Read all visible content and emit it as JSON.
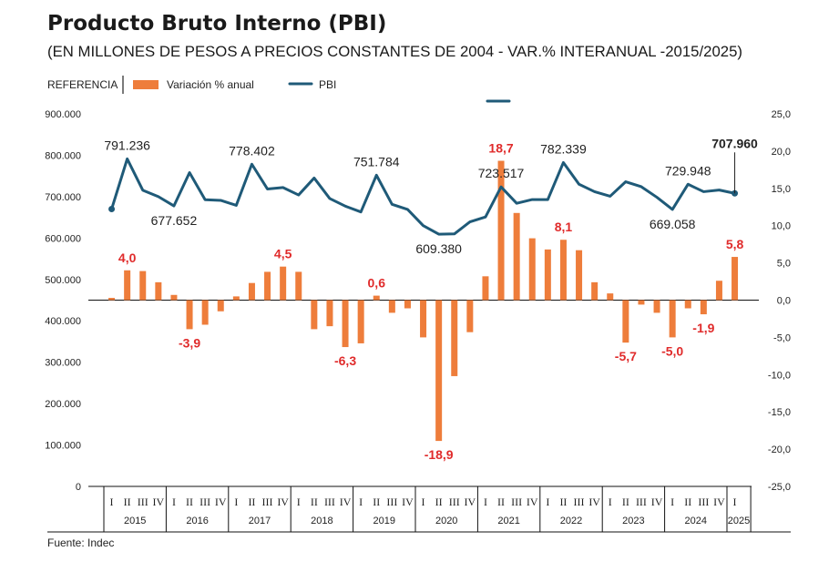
{
  "chart_data": {
    "type": "bar+line",
    "title": "Producto Bruto Interno (PBI)",
    "subtitle": "(EN MILLONES DE PESOS A PRECIOS CONSTANTES DE 2004 - VAR.% INTERANUAL -2015/2025)",
    "legend": {
      "heading": "REFERENCIA",
      "bar_label": "Variación % anual",
      "line_label": "PBI",
      "placement": "top-left"
    },
    "source": "Fuente: Indec",
    "colors": {
      "bar": "#ee7d3b",
      "line": "#1f5a78",
      "bar_label": "#e02b2b",
      "text": "#222222"
    },
    "years": [
      "2015",
      "2016",
      "2017",
      "2018",
      "2019",
      "2020",
      "2021",
      "2022",
      "2023",
      "2024",
      "2025"
    ],
    "quarters": [
      "I",
      "II",
      "III",
      "IV"
    ],
    "left_axis": {
      "range": [
        0,
        900000
      ],
      "ticks": [
        "0",
        "100.000",
        "200.000",
        "300.000",
        "400.000",
        "500.000",
        "600.000",
        "700.000",
        "800.000",
        "900.000"
      ]
    },
    "right_axis": {
      "range": [
        -25,
        25
      ],
      "ticks": [
        "-25,0",
        "-20,0",
        "-15,0",
        "-10,0",
        "-5,0",
        "0,0",
        "5,0",
        "10,0",
        "15,0",
        "20,0",
        "25,0"
      ]
    },
    "series": [
      {
        "name": "Variación % anual",
        "type": "bar",
        "axis": "right",
        "values": [
          0.3,
          4.0,
          3.9,
          2.4,
          0.7,
          -3.9,
          -3.3,
          -1.5,
          0.5,
          2.3,
          3.8,
          4.5,
          3.8,
          -3.9,
          -3.5,
          -6.3,
          -5.8,
          0.6,
          -1.7,
          -1.1,
          -5.0,
          -18.9,
          -10.2,
          -4.3,
          3.2,
          18.7,
          11.7,
          8.3,
          6.8,
          8.1,
          6.7,
          2.4,
          0.9,
          -5.7,
          -0.6,
          -1.7,
          -5.0,
          -1.1,
          -1.9,
          2.6,
          5.8
        ]
      },
      {
        "name": "PBI",
        "type": "line",
        "axis": "left",
        "values": [
          670000,
          791236,
          715500,
          700000,
          677652,
          758000,
          692600,
          691000,
          679000,
          778402,
          718500,
          722000,
          704000,
          745000,
          695500,
          677000,
          663000,
          751784,
          681500,
          669000,
          630000,
          609380,
          610000,
          639000,
          651000,
          723517,
          684000,
          693000,
          693000,
          782339,
          730000,
          712000,
          701000,
          736000,
          724000,
          698500,
          669058,
          729948,
          712000,
          716000,
          707960
        ]
      }
    ],
    "bar_labels": [
      {
        "index": 1,
        "text": "4,0"
      },
      {
        "index": 5,
        "text": "-3,9"
      },
      {
        "index": 11,
        "text": "4,5"
      },
      {
        "index": 15,
        "text": "-6,3"
      },
      {
        "index": 17,
        "text": "0,6"
      },
      {
        "index": 21,
        "text": "-18,9"
      },
      {
        "index": 25,
        "text": "18,7"
      },
      {
        "index": 29,
        "text": "8,1"
      },
      {
        "index": 33,
        "text": "-5,7"
      },
      {
        "index": 36,
        "text": "-5,0"
      },
      {
        "index": 38,
        "text": "-1,9"
      },
      {
        "index": 40,
        "text": "5,8"
      }
    ],
    "line_labels": [
      {
        "index": 1,
        "text": "791.236",
        "pos": "above"
      },
      {
        "index": 4,
        "text": "677.652",
        "pos": "below"
      },
      {
        "index": 9,
        "text": "778.402",
        "pos": "above"
      },
      {
        "index": 17,
        "text": "751.784",
        "pos": "above"
      },
      {
        "index": 21,
        "text": "609.380",
        "pos": "below"
      },
      {
        "index": 25,
        "text": "723.517",
        "pos": "above"
      },
      {
        "index": 29,
        "text": "782.339",
        "pos": "above"
      },
      {
        "index": 36,
        "text": "669.058",
        "pos": "below"
      },
      {
        "index": 37,
        "text": "729.948",
        "pos": "above"
      },
      {
        "index": 40,
        "text": "707.960",
        "pos": "callout"
      }
    ]
  }
}
